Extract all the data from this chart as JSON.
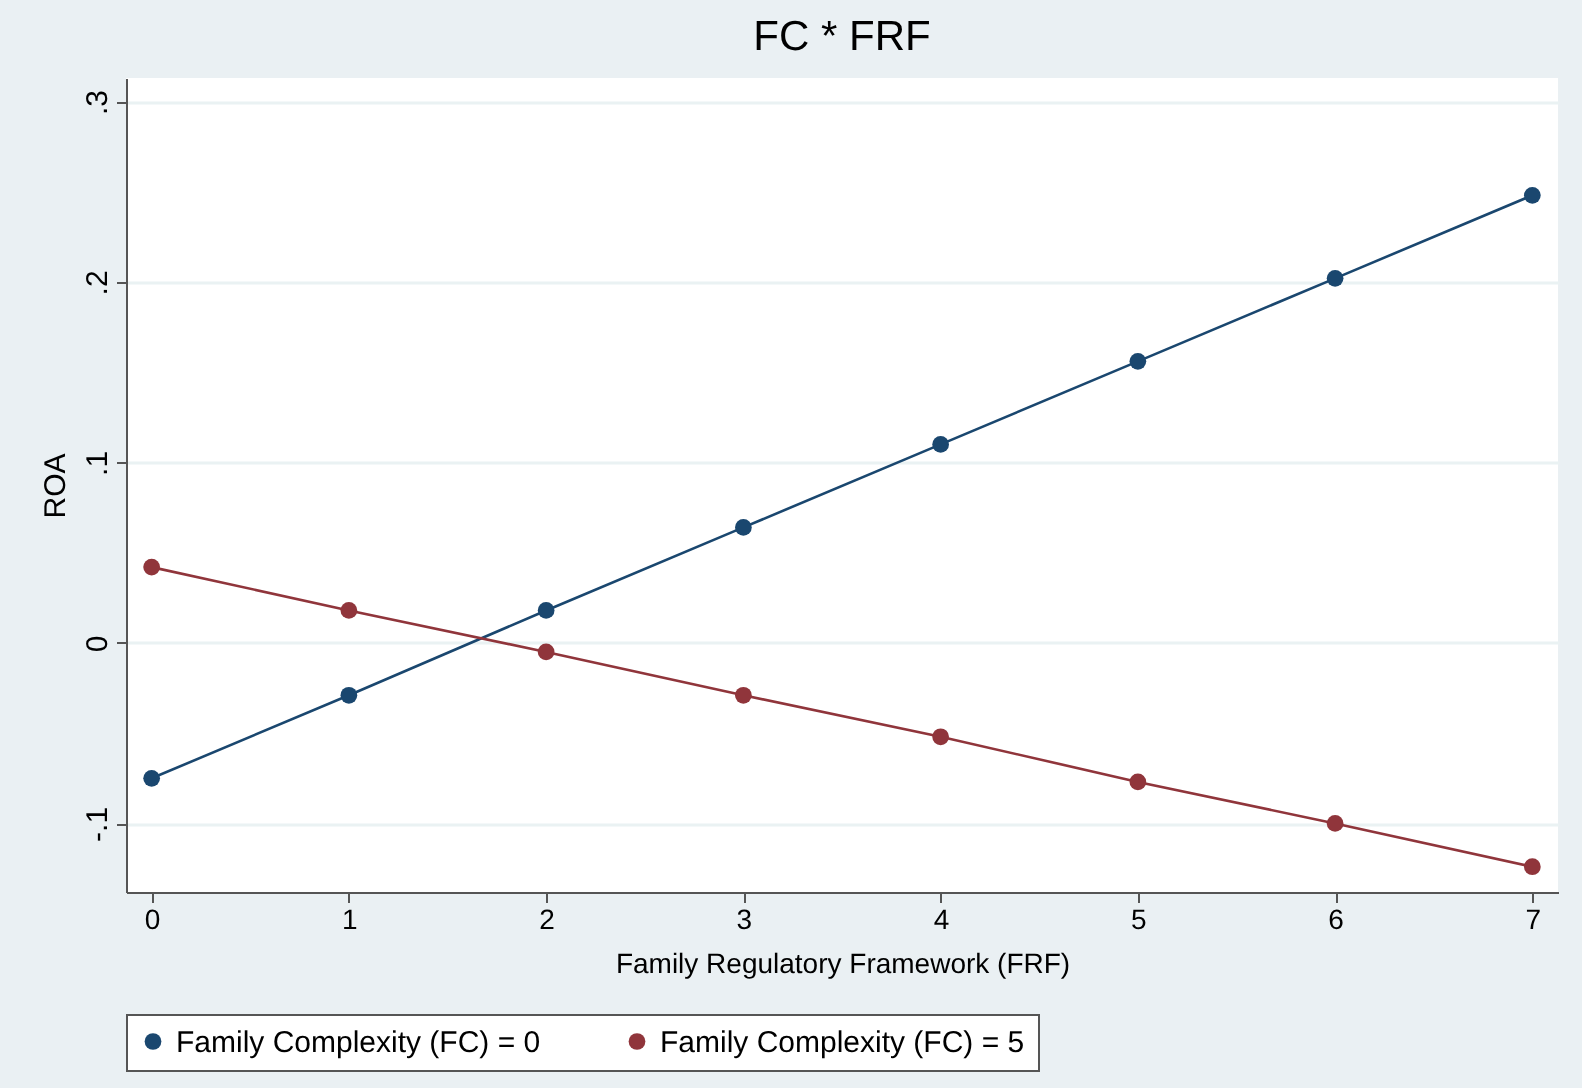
{
  "chart_data": {
    "type": "line",
    "title": "FC * FRF",
    "xlabel": "Family Regulatory Framework (FRF)",
    "ylabel": "ROA",
    "x": [
      0,
      1,
      2,
      3,
      4,
      5,
      6,
      7
    ],
    "series": [
      {
        "name": "Family Complexity (FC) = 0",
        "color": "#1a476f",
        "values": [
          -0.075,
          -0.029,
          0.018,
          0.064,
          0.11,
          0.156,
          0.202,
          0.248
        ]
      },
      {
        "name": "Family Complexity (FC) = 5",
        "color": "#90353b",
        "values": [
          0.042,
          0.018,
          -0.005,
          -0.029,
          -0.052,
          -0.077,
          -0.1,
          -0.124
        ]
      }
    ],
    "xlim": [
      -0.13,
      7.13
    ],
    "xticks": [
      0,
      1,
      2,
      3,
      4,
      5,
      6,
      7
    ],
    "ylim": [
      -0.138,
      0.313
    ],
    "yticks": [
      {
        "value": -0.1,
        "label": "-.1"
      },
      0,
      {
        "value": 0.1,
        "label": ".1"
      },
      {
        "value": 0.2,
        "label": ".2"
      },
      {
        "value": 0.3,
        "label": ".3"
      }
    ],
    "grid": "y",
    "legend": "bottom",
    "marker": "circle",
    "line_style": "solid"
  }
}
